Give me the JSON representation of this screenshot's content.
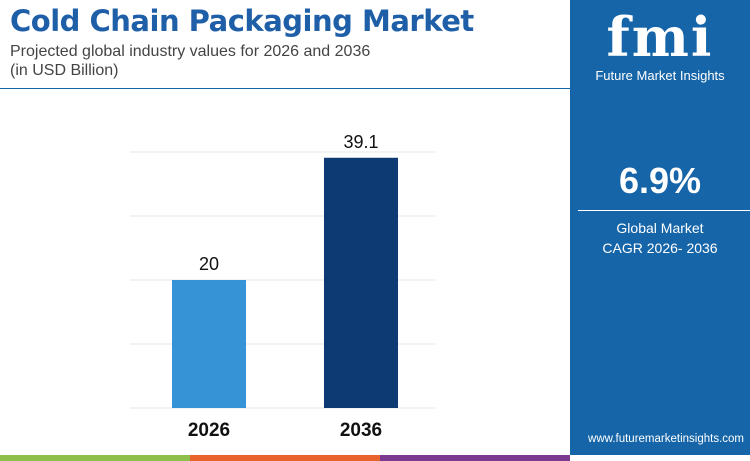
{
  "header": {
    "title": "Cold Chain Packaging Market",
    "subtitle_line1": "Projected global industry values for 2026 and 2036",
    "subtitle_line2": "(in USD Billion)"
  },
  "sidebar": {
    "logo_text": "fmi",
    "brand": "Future Market Insights",
    "cagr_value": "6.9%",
    "cagr_label_line1": "Global Market",
    "cagr_label_line2": "CAGR 2026- 2036",
    "website": "www.futuremarketinsights.com"
  },
  "colors": {
    "bar_2026": "#3593d6",
    "bar_2036": "#0d3a73",
    "panel": "#1565a8",
    "title": "#1f5fa8",
    "stripe": [
      "#8cc04b",
      "#e8642c",
      "#7b3a8f"
    ]
  },
  "chart_data": {
    "type": "bar",
    "categories": [
      "2026",
      "2036"
    ],
    "values": [
      20,
      39.1
    ],
    "data_labels": [
      "20",
      "39.1"
    ],
    "ylim": [
      0,
      40
    ],
    "grid": true,
    "xlabel": "",
    "ylabel": ""
  }
}
